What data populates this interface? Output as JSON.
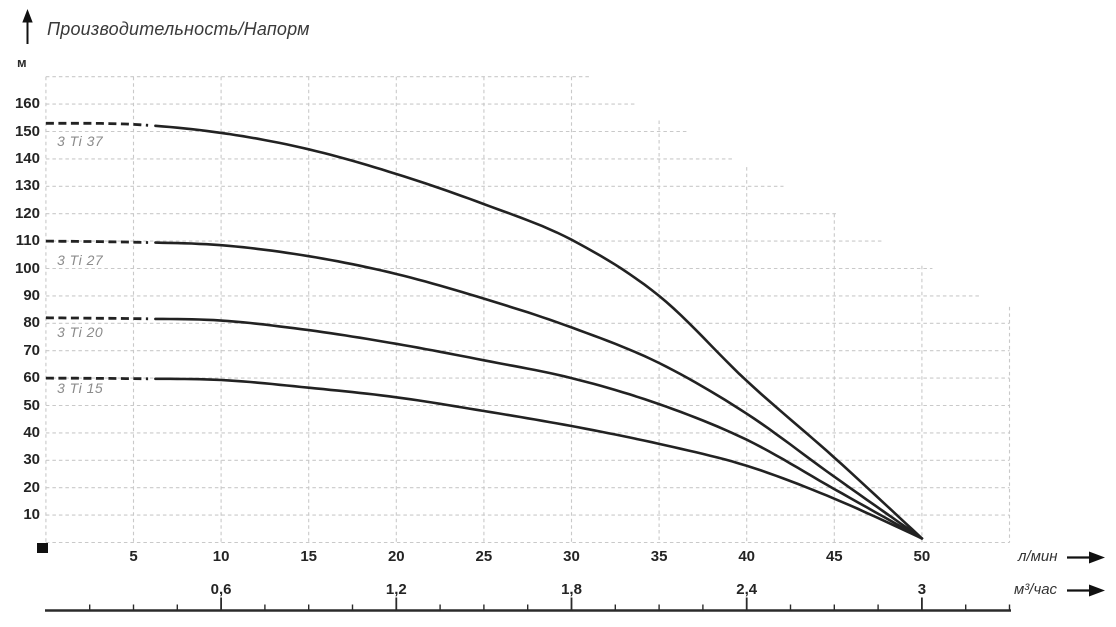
{
  "chart_data": {
    "type": "line",
    "title": "Производительность/Напорм",
    "ylabel": "м",
    "xlabel_primary": "л/мин",
    "xlabel_secondary": "м³/час",
    "xlim": [
      0,
      55
    ],
    "ylim": [
      0,
      170
    ],
    "grid": "dashed, staircase-clipped on right side",
    "legend_position": "labels at left curve starts",
    "y_ticks": [
      160,
      150,
      140,
      130,
      120,
      110,
      100,
      90,
      80,
      70,
      60,
      50,
      40,
      30,
      20,
      10
    ],
    "x_ticks_lmin": [
      5,
      10,
      15,
      20,
      25,
      30,
      35,
      40,
      45,
      50
    ],
    "x_ticks_m3h": [
      "0,6",
      "1,2",
      "1,8",
      "2,4",
      "3"
    ],
    "series": [
      {
        "name": "3 Ti 37",
        "dash_until_q": 6,
        "points": [
          [
            0,
            153
          ],
          [
            5,
            152.6
          ],
          [
            10,
            149.5
          ],
          [
            15,
            143.5
          ],
          [
            20,
            134.5
          ],
          [
            25,
            123.5
          ],
          [
            30,
            110.5
          ],
          [
            35,
            90
          ],
          [
            40,
            59
          ],
          [
            45,
            31
          ],
          [
            50,
            1.5
          ]
        ]
      },
      {
        "name": "3 Ti 27",
        "dash_until_q": 6,
        "points": [
          [
            0,
            110
          ],
          [
            5,
            109.6
          ],
          [
            10,
            108.5
          ],
          [
            15,
            104.5
          ],
          [
            20,
            98
          ],
          [
            25,
            89
          ],
          [
            30,
            78.5
          ],
          [
            35,
            65.5
          ],
          [
            40,
            47
          ],
          [
            45,
            24
          ],
          [
            50,
            1.5
          ]
        ]
      },
      {
        "name": "3 Ti 20",
        "dash_until_q": 6,
        "points": [
          [
            0,
            82
          ],
          [
            5,
            81.7
          ],
          [
            10,
            81
          ],
          [
            15,
            77.5
          ],
          [
            20,
            72.5
          ],
          [
            25,
            66.5
          ],
          [
            30,
            60
          ],
          [
            35,
            50.5
          ],
          [
            40,
            37.5
          ],
          [
            45,
            19.5
          ],
          [
            50,
            1.5
          ]
        ]
      },
      {
        "name": "3 Ti 15",
        "dash_until_q": 6,
        "points": [
          [
            0,
            60
          ],
          [
            5,
            59.8
          ],
          [
            10,
            59.3
          ],
          [
            15,
            56.5
          ],
          [
            20,
            53
          ],
          [
            25,
            48
          ],
          [
            30,
            42.5
          ],
          [
            35,
            36
          ],
          [
            40,
            28
          ],
          [
            45,
            16
          ],
          [
            50,
            1.5
          ]
        ]
      }
    ],
    "annotations": "all four curves converge at 50 л/мин (3 м³/час) near zero head"
  },
  "colors": {
    "curve": "#222222",
    "grid": "#c9c9c9",
    "curve_label": "#8b8b8b",
    "text": "#242424",
    "accent_black": "#111111"
  }
}
